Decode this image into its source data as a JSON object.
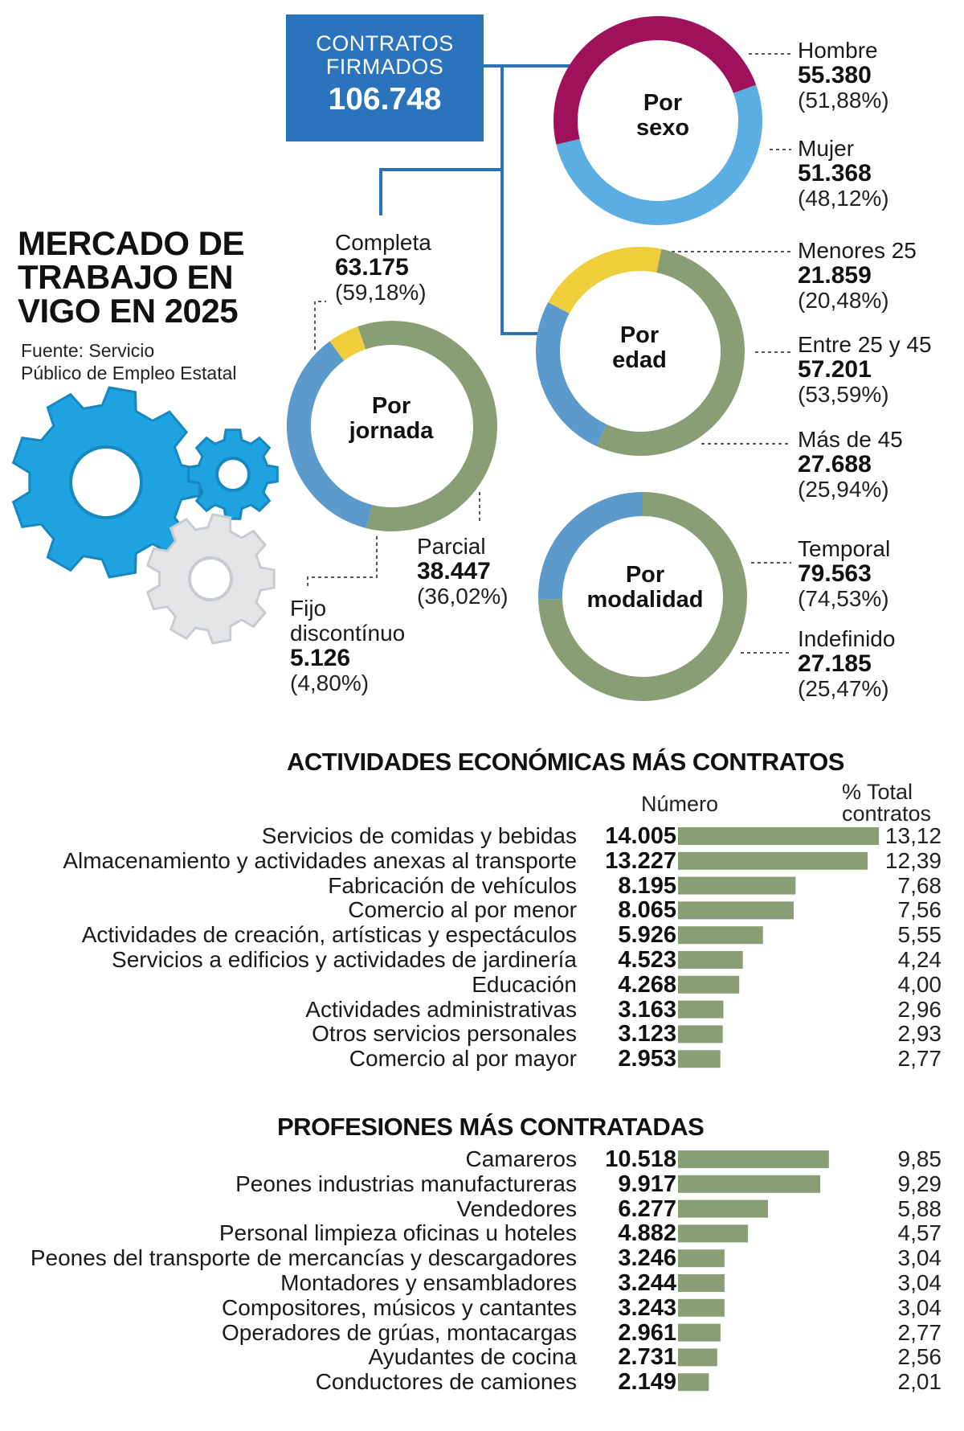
{
  "header": {
    "box_line1": "CONTRATOS",
    "box_line2": "FIRMADOS",
    "box_total": "106.748",
    "title_line1": "MERCADO DE",
    "title_line2": "TRABAJO EN",
    "title_line3": "VIGO EN 2025",
    "source_line1": "Fuente: Servicio",
    "source_line2": "Público de Empleo Estatal"
  },
  "colors": {
    "box": "#2b73bc",
    "connector": "#2b73bc",
    "light_blue": "#5aaee3",
    "magenta": "#a0115c",
    "yellow": "#efce3c",
    "sage": "#8a9e76",
    "steel_blue": "#5c9acb",
    "bar": "#8a9e76",
    "gear_blue": "#1fa3e0",
    "gear_white": "#e3e5e7"
  },
  "chart_data": [
    {
      "type": "pie",
      "title_line1": "Por",
      "title_line2": "sexo",
      "series": [
        {
          "name": "Hombre",
          "display": "55.380",
          "value": 55380,
          "pct": "(51,88%)",
          "color": "#5aaee3"
        },
        {
          "name": "Mujer",
          "display": "51.368",
          "value": 51368,
          "pct": "(48,12%)",
          "color": "#a0115c"
        }
      ]
    },
    {
      "type": "pie",
      "title_line1": "Por",
      "title_line2": "edad",
      "series": [
        {
          "name": "Menores 25",
          "display": "21.859",
          "value": 21859,
          "pct": "(20,48%)",
          "color": "#efce3c"
        },
        {
          "name": "Entre 25 y 45",
          "display": "57.201",
          "value": 57201,
          "pct": "(53,59%)",
          "color": "#8a9e76"
        },
        {
          "name": "Más de 45",
          "display": "27.688",
          "value": 27688,
          "pct": "(25,94%)",
          "color": "#5c9acb"
        }
      ]
    },
    {
      "type": "pie",
      "title_line1": "Por",
      "title_line2": "jornada",
      "series": [
        {
          "name": "Completa",
          "display": "63.175",
          "value": 63175,
          "pct": "(59,18%)",
          "color": "#8a9e76"
        },
        {
          "name": "Parcial",
          "display": "38.447",
          "value": 38447,
          "pct": "(36,02%)",
          "color": "#5c9acb"
        },
        {
          "name": "Fijo discontínuo",
          "name_line1": "Fijo",
          "name_line2": "discontínuo",
          "display": "5.126",
          "value": 5126,
          "pct": "(4,80%)",
          "color": "#efce3c"
        }
      ]
    },
    {
      "type": "pie",
      "title_line1": "Por",
      "title_line2": "modalidad",
      "series": [
        {
          "name": "Temporal",
          "display": "79.563",
          "value": 79563,
          "pct": "(74,53%)",
          "color": "#8a9e76"
        },
        {
          "name": "Indefinido",
          "display": "27.185",
          "value": 27185,
          "pct": "(25,47%)",
          "color": "#5c9acb"
        }
      ]
    },
    {
      "type": "bar",
      "title": "ACTIVIDADES ECONÓMICAS MÁS CONTRATOS",
      "col_number": "Número",
      "col_pct_line1": "% Total",
      "col_pct_line2": "contratos",
      "categories": [
        "Servicios de comidas y bebidas",
        "Almacenamiento y actividades anexas al transporte",
        "Fabricación de vehículos",
        "Comercio al por menor",
        "Actividades de creación, artísticas y espectáculos",
        "Servicios a edificios y actividades de jardinería",
        "Educación",
        "Actividades administrativas",
        "Otros servicios personales",
        "Comercio al por mayor"
      ],
      "values": [
        14005,
        13227,
        8195,
        8065,
        5926,
        4523,
        4268,
        3163,
        3123,
        2953
      ],
      "display": [
        "14.005",
        "13.227",
        "8.195",
        "8.065",
        "5.926",
        "4.523",
        "4.268",
        "3.163",
        "3.123",
        "2.953"
      ],
      "pct": [
        "13,12",
        "12,39",
        "7,68",
        "7,56",
        "5,55",
        "4,24",
        "4,00",
        "2,96",
        "2,93",
        "2,77"
      ]
    },
    {
      "type": "bar",
      "title": "PROFESIONES MÁS CONTRATADAS",
      "categories": [
        "Camareros",
        "Peones industrias manufactureras",
        "Vendedores",
        "Personal limpieza oficinas u hoteles",
        "Peones del transporte de mercancías y descargadores",
        "Montadores y ensambladores",
        "Compositores, músicos y cantantes",
        "Operadores de grúas, montacargas",
        "Ayudantes de cocina",
        "Conductores de camiones"
      ],
      "values": [
        10518,
        9917,
        6277,
        4882,
        3246,
        3244,
        3243,
        2961,
        2731,
        2149
      ],
      "display": [
        "10.518",
        "9.917",
        "6.277",
        "4.882",
        "3.246",
        "3.244",
        "3.243",
        "2.961",
        "2.731",
        "2.149"
      ],
      "pct": [
        "9,85",
        "9,29",
        "5,88",
        "4,57",
        "3,04",
        "3,04",
        "3,04",
        "2,77",
        "2,56",
        "2,01"
      ]
    }
  ]
}
